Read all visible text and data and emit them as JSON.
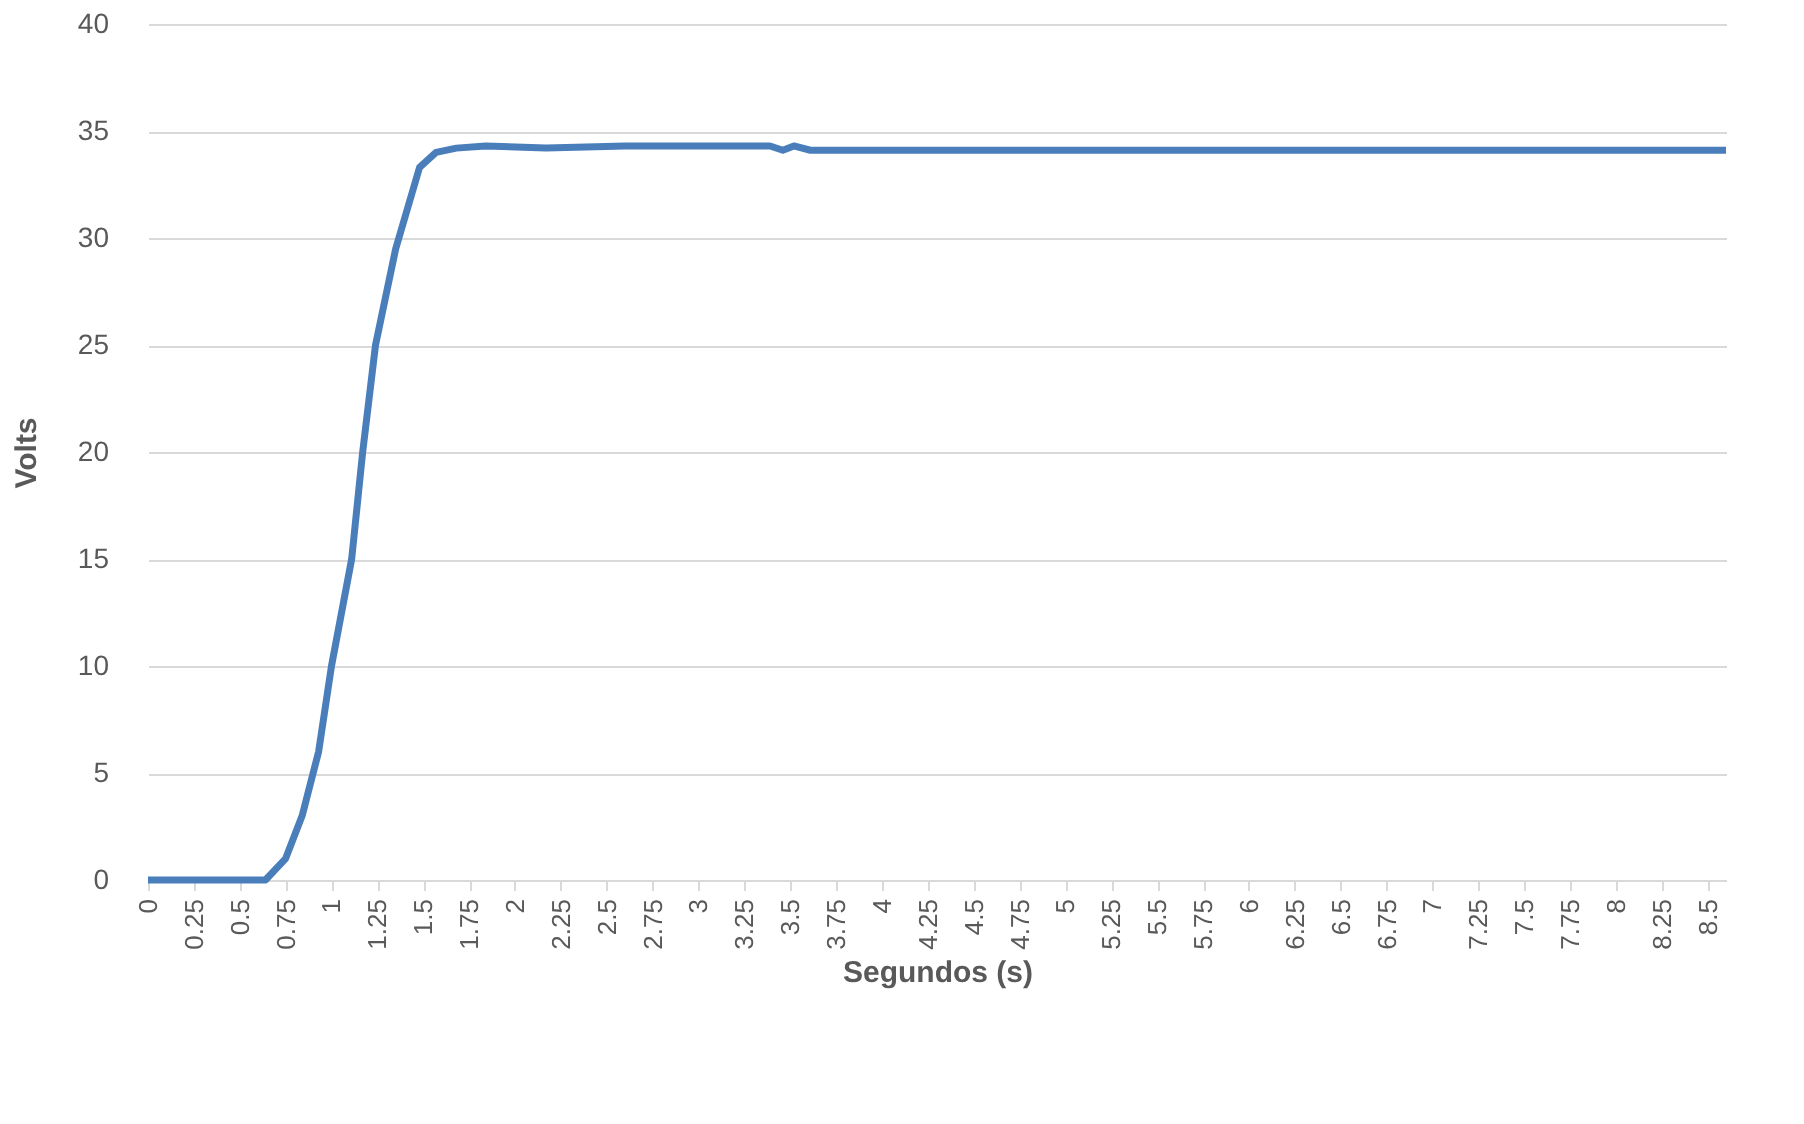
{
  "chart_data": {
    "type": "line",
    "xlabel": "Segundos (s)",
    "ylabel": "Volts",
    "x": [
      0,
      0.25,
      0.5,
      0.64,
      0.75,
      0.84,
      0.93,
      1.0,
      1.11,
      1.17,
      1.24,
      1.35,
      1.48,
      1.57,
      1.68,
      1.84,
      2.17,
      2.6,
      3.39,
      3.46,
      3.52,
      3.61,
      8.6
    ],
    "series": [
      {
        "color": "#4a7ebb",
        "values": [
          0,
          0,
          0,
          0,
          1,
          3,
          6,
          10,
          15,
          20,
          25,
          29.5,
          33.3,
          34,
          34.2,
          34.3,
          34.2,
          34.3,
          34.3,
          34.1,
          34.3,
          34.1,
          34.1
        ]
      }
    ],
    "xlim": [
      0,
      8.6
    ],
    "xticks": [
      0,
      0.25,
      0.5,
      0.75,
      1,
      1.25,
      1.5,
      1.75,
      2,
      2.25,
      2.5,
      2.75,
      3,
      3.25,
      3.5,
      3.75,
      4,
      4.25,
      4.5,
      4.75,
      5,
      5.25,
      5.5,
      5.75,
      6,
      6.25,
      6.5,
      6.75,
      7,
      7.25,
      7.5,
      7.75,
      8,
      8.25,
      8.5
    ],
    "ylim": [
      0,
      40
    ],
    "yticks": [
      0,
      5,
      10,
      15,
      20,
      25,
      30,
      35,
      40
    ],
    "grid": "y",
    "legend": false,
    "marker": "none",
    "line_style": "solid"
  }
}
